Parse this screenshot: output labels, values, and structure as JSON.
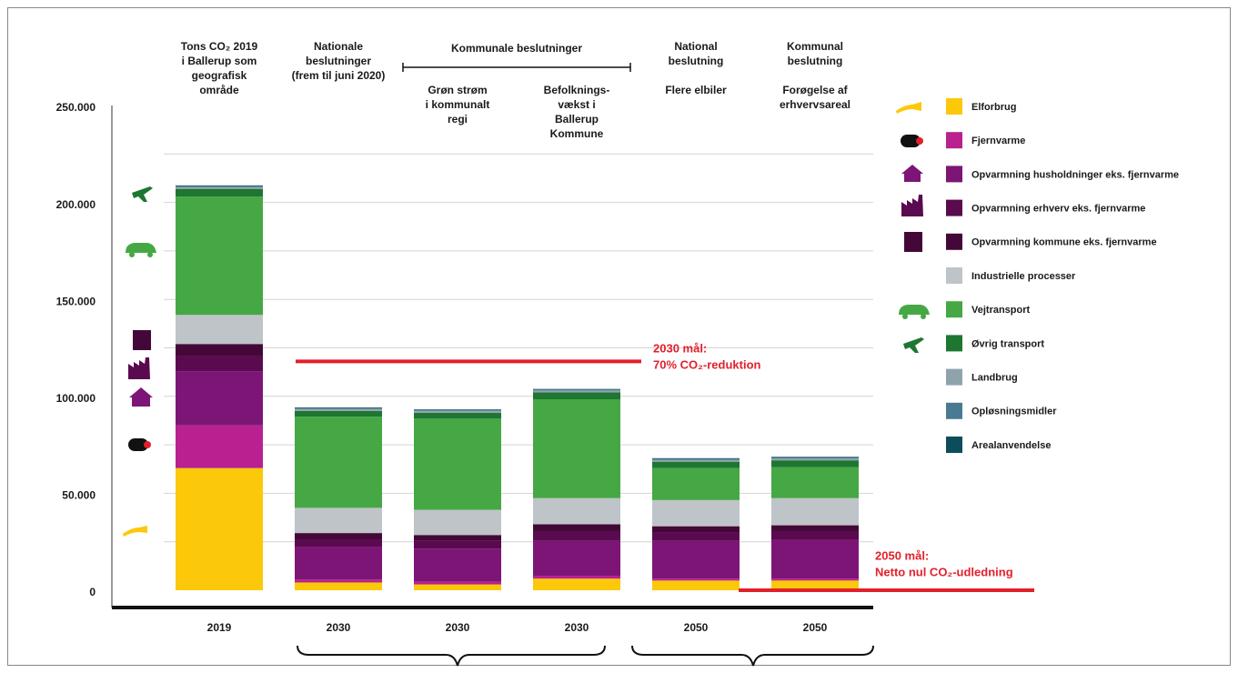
{
  "chart_data": {
    "type": "stacked_bar",
    "categories": [
      "2019",
      "2030",
      "2030",
      "2030",
      "2050",
      "2050"
    ],
    "column_headers": [
      {
        "lines": [
          "Tons CO₂ 2019",
          "i Ballerup som",
          "geografisk",
          "område"
        ]
      },
      {
        "lines": [
          "Nationale",
          "beslutninger",
          "(frem til juni 2020)"
        ]
      },
      {
        "lines": [
          "Grøn strøm",
          "i kommunalt",
          "regi"
        ]
      },
      {
        "lines": [
          "Befolknings-",
          "vækst i",
          "Ballerup",
          "Kommune"
        ]
      },
      {
        "group": [
          "National",
          "beslutning"
        ],
        "lines": [
          "Flere elbiler"
        ]
      },
      {
        "group": [
          "Kommunal",
          "beslutning"
        ],
        "lines": [
          "Forøgelse af",
          "erhvervsareal"
        ]
      }
    ],
    "span_header": "Kommunale beslutninger",
    "series": [
      {
        "name": "Elforbrug",
        "color": "#fcc80a",
        "values": [
          63000,
          4000,
          3000,
          6000,
          5000,
          5000
        ]
      },
      {
        "name": "Fjernvarme",
        "color": "#b8218f",
        "values": [
          22000,
          1500,
          1500,
          1500,
          1000,
          1000
        ]
      },
      {
        "name": "Opvarmning husholdninger eks. fjernvarme",
        "color": "#7d1577",
        "values": [
          28000,
          17000,
          17000,
          18000,
          19500,
          20000
        ]
      },
      {
        "name": "Opvarmning erhverv eks. fjernvarme",
        "color": "#5a0a4e",
        "values": [
          8000,
          4000,
          4000,
          5000,
          4500,
          4500
        ]
      },
      {
        "name": "Opvarmning kommune eks. fjernvarme",
        "color": "#440838",
        "values": [
          6000,
          3000,
          3000,
          3500,
          3000,
          3000
        ]
      },
      {
        "name": "Industrielle processer",
        "color": "#bfc4c9",
        "values": [
          15000,
          13000,
          13000,
          13500,
          13500,
          14000
        ]
      },
      {
        "name": "Vejtransport",
        "color": "#45a844",
        "values": [
          61000,
          47000,
          47000,
          51000,
          16500,
          16000
        ]
      },
      {
        "name": "Øvrig transport",
        "color": "#1e7631",
        "values": [
          4000,
          3000,
          3000,
          3500,
          3300,
          3500
        ]
      },
      {
        "name": "Landbrug",
        "color": "#8fa3ad",
        "values": [
          1000,
          1000,
          1000,
          1000,
          1000,
          1000
        ]
      },
      {
        "name": "Opløsningsmidler",
        "color": "#4a7a92",
        "values": [
          500,
          500,
          500,
          500,
          500,
          500
        ]
      },
      {
        "name": "Arealanvendelse",
        "color": "#0b4d5b",
        "values": [
          300,
          300,
          300,
          300,
          300,
          300
        ]
      }
    ],
    "targets": [
      {
        "label_lines": [
          "2030 mål:",
          "70% CO₂-reduktion"
        ],
        "value": 118000,
        "color": "#e2202b"
      },
      {
        "label_lines": [
          "2050 mål:",
          "Netto nul CO₂-udledning"
        ],
        "value": 0,
        "color": "#e2202b"
      }
    ],
    "ylim": [
      0,
      250000
    ],
    "yticks": [
      0,
      {
        "value": 50000,
        "label": "50.000"
      },
      {
        "value": 100000,
        "label": "100.000"
      },
      {
        "value": 150000,
        "label": "150.000"
      },
      {
        "value": 200000,
        "label": "200.000"
      },
      {
        "value": 250000,
        "label": "250.000"
      }
    ],
    "yticks_minor": [
      25000,
      75000,
      125000,
      175000,
      225000
    ],
    "grid": true
  }
}
